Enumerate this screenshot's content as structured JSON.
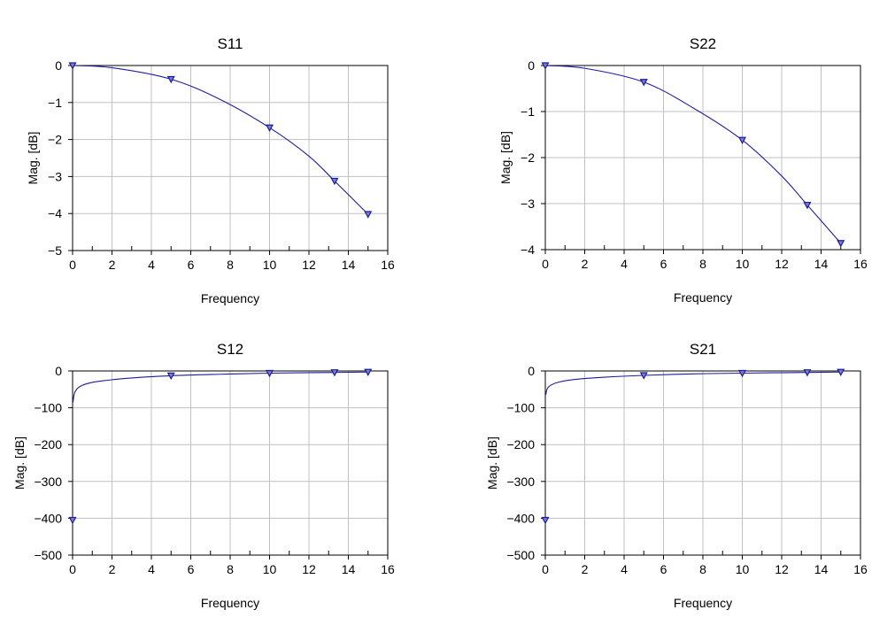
{
  "chart_data": [
    {
      "type": "line",
      "title": "S11",
      "xlabel": "Frequency",
      "ylabel": "Mag. [dB]",
      "xlim": [
        0,
        16
      ],
      "ylim": [
        -5,
        0
      ],
      "xticks": [
        "0",
        "2",
        "4",
        "6",
        "8",
        "10",
        "12",
        "14",
        "16"
      ],
      "yticks": [
        "0",
        "-1",
        "-2",
        "-3",
        "-4",
        "-5"
      ],
      "grid": true,
      "curve_points": [
        [
          0,
          0
        ],
        [
          2,
          -0.06
        ],
        [
          5,
          -0.37
        ],
        [
          7.5,
          -0.92
        ],
        [
          10,
          -1.68
        ],
        [
          12,
          -2.45
        ],
        [
          13.3,
          -3.12
        ],
        [
          15,
          -4.02
        ]
      ],
      "markers": [
        [
          0,
          0
        ],
        [
          5,
          -0.37
        ],
        [
          10,
          -1.68
        ],
        [
          13.3,
          -3.12
        ],
        [
          15,
          -4.02
        ]
      ],
      "line_color": "#1c1c9c",
      "marker_color": "#1c1c9c"
    },
    {
      "type": "line",
      "title": "S22",
      "xlabel": "Frequency",
      "ylabel": "Mag. [dB]",
      "xlim": [
        0,
        16
      ],
      "ylim": [
        -4,
        0
      ],
      "xticks": [
        "0",
        "2",
        "4",
        "6",
        "8",
        "10",
        "12",
        "14",
        "16"
      ],
      "yticks": [
        "0",
        "-1",
        "-2",
        "-3",
        "-4"
      ],
      "grid": true,
      "curve_points": [
        [
          0,
          0
        ],
        [
          2,
          -0.06
        ],
        [
          5,
          -0.36
        ],
        [
          7.5,
          -0.92
        ],
        [
          10,
          -1.62
        ],
        [
          12,
          -2.4
        ],
        [
          13.3,
          -3.03
        ],
        [
          15,
          -3.86
        ]
      ],
      "markers": [
        [
          0,
          0
        ],
        [
          5,
          -0.36
        ],
        [
          10,
          -1.62
        ],
        [
          13.3,
          -3.03
        ],
        [
          15,
          -3.86
        ]
      ],
      "line_color": "#1c1c9c",
      "marker_color": "#1c1c9c"
    },
    {
      "type": "line",
      "title": "S12",
      "xlabel": "Frequency",
      "ylabel": "Mag. [dB]",
      "xlim": [
        0,
        16
      ],
      "ylim": [
        -500,
        0
      ],
      "xticks": [
        "0",
        "2",
        "4",
        "6",
        "8",
        "10",
        "12",
        "14",
        "16"
      ],
      "yticks": [
        "0",
        "-100",
        "-200",
        "-300",
        "-400",
        "-500"
      ],
      "grid": true,
      "curve_points": [
        [
          0.02,
          -85
        ],
        [
          0.1,
          -60
        ],
        [
          0.3,
          -45
        ],
        [
          0.7,
          -35
        ],
        [
          1.5,
          -27
        ],
        [
          3,
          -19
        ],
        [
          5,
          -13
        ],
        [
          7.5,
          -9
        ],
        [
          10,
          -6
        ],
        [
          13.3,
          -4
        ],
        [
          15,
          -3
        ]
      ],
      "markers": [
        [
          0,
          -405
        ],
        [
          5,
          -13
        ],
        [
          10,
          -6
        ],
        [
          13.3,
          -4
        ],
        [
          15,
          -3
        ]
      ],
      "line_color": "#1c1c9c",
      "marker_color": "#1c1c9c"
    },
    {
      "type": "line",
      "title": "S21",
      "xlabel": "Frequency",
      "ylabel": "Mag. [dB]",
      "xlim": [
        0,
        16
      ],
      "ylim": [
        -500,
        0
      ],
      "xticks": [
        "0",
        "2",
        "4",
        "6",
        "8",
        "10",
        "12",
        "14",
        "16"
      ],
      "yticks": [
        "0",
        "-100",
        "-200",
        "-300",
        "-400",
        "-500"
      ],
      "grid": true,
      "curve_points": [
        [
          0.02,
          -65
        ],
        [
          0.1,
          -48
        ],
        [
          0.3,
          -38
        ],
        [
          0.7,
          -30
        ],
        [
          1.5,
          -23
        ],
        [
          3,
          -17
        ],
        [
          5,
          -12
        ],
        [
          7.5,
          -8
        ],
        [
          10,
          -6
        ],
        [
          13.3,
          -4
        ],
        [
          15,
          -3
        ]
      ],
      "markers": [
        [
          0,
          -405
        ],
        [
          5,
          -12
        ],
        [
          10,
          -6
        ],
        [
          13.3,
          -4
        ],
        [
          15,
          -3
        ]
      ],
      "line_color": "#1c1c9c",
      "marker_color": "#1c1c9c"
    }
  ]
}
